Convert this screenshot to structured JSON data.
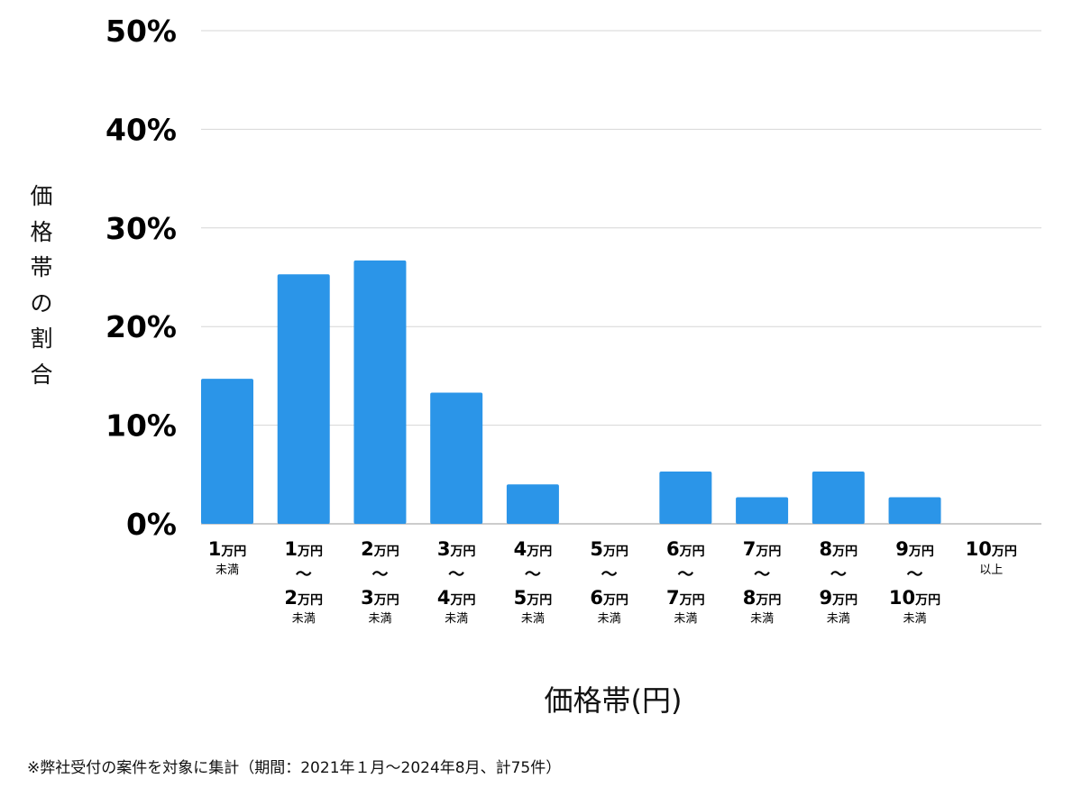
{
  "chart_data": {
    "type": "bar",
    "ylabel": "価格帯の割合",
    "xlabel": "価格帯(円)",
    "ylim": [
      0,
      50
    ],
    "yticks": [
      "0%",
      "10%",
      "20%",
      "30%",
      "40%",
      "50%"
    ],
    "grid": true,
    "bar_color": "#2b95e8",
    "categories": [
      {
        "top": "1万円",
        "middle": "",
        "bottom": "",
        "note": "未満"
      },
      {
        "top": "1万円",
        "middle": "〜",
        "bottom": "2万円",
        "note": "未満"
      },
      {
        "top": "2万円",
        "middle": "〜",
        "bottom": "3万円",
        "note": "未満"
      },
      {
        "top": "3万円",
        "middle": "〜",
        "bottom": "4万円",
        "note": "未満"
      },
      {
        "top": "4万円",
        "middle": "〜",
        "bottom": "5万円",
        "note": "未満"
      },
      {
        "top": "5万円",
        "middle": "〜",
        "bottom": "6万円",
        "note": "未満"
      },
      {
        "top": "6万円",
        "middle": "〜",
        "bottom": "7万円",
        "note": "未満"
      },
      {
        "top": "7万円",
        "middle": "〜",
        "bottom": "8万円",
        "note": "未満"
      },
      {
        "top": "8万円",
        "middle": "〜",
        "bottom": "9万円",
        "note": "未満"
      },
      {
        "top": "9万円",
        "middle": "〜",
        "bottom": "10万円",
        "note": "未満"
      },
      {
        "top": "10万円",
        "middle": "",
        "bottom": "",
        "note": "以上"
      }
    ],
    "values": [
      14.7,
      25.3,
      26.7,
      13.3,
      4.0,
      0,
      5.3,
      2.7,
      5.3,
      2.7,
      0
    ]
  },
  "footnote": "※弊社受付の案件を対象に集計（期間：2021年１月〜2024年8月、計75件）"
}
